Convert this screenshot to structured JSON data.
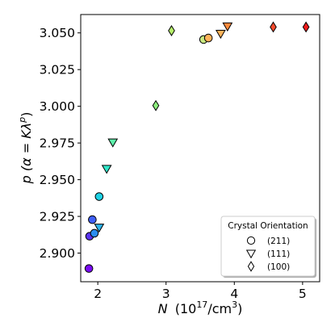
{
  "chart_data": {
    "type": "scatter",
    "xlabel_main": "N",
    "xlabel_unit": "(10",
    "xlabel_exp": "17",
    "xlabel_unit2": "/cm",
    "xlabel_exp2": "3",
    "xlabel_close": ")",
    "ylabel": "p (α = Kλ",
    "ylabel_exp": "p",
    "ylabel_close": ")",
    "xlim": [
      1.75,
      5.25
    ],
    "ylim": [
      2.8805,
      3.0625
    ],
    "xticks": [
      2,
      3,
      4,
      5
    ],
    "yticks": [
      2.9,
      2.925,
      2.95,
      2.975,
      3.0,
      3.025,
      3.05
    ],
    "ytick_labels": [
      "2.900",
      "2.925",
      "2.950",
      "2.975",
      "3.000",
      "3.025",
      "3.050"
    ],
    "xtick_labels": [
      "2",
      "3",
      "4",
      "5"
    ],
    "legend": {
      "title": "Crystal Orientation",
      "location": "lower-right",
      "entries": [
        {
          "marker": "circle",
          "label": "(211)"
        },
        {
          "marker": "triangle-down",
          "label": "(111)"
        },
        {
          "marker": "diamond",
          "label": "(100)"
        }
      ]
    },
    "points": [
      {
        "x": 1.87,
        "y": 2.8895,
        "marker": "circle",
        "color": "#7a0bf5"
      },
      {
        "x": 1.88,
        "y": 2.9115,
        "marker": "circle",
        "color": "#5a34f0"
      },
      {
        "x": 1.92,
        "y": 2.9228,
        "marker": "circle",
        "color": "#3f5ff6"
      },
      {
        "x": 1.95,
        "y": 2.9135,
        "marker": "circle",
        "color": "#2b8df0"
      },
      {
        "x": 2.02,
        "y": 2.9385,
        "marker": "circle",
        "color": "#1ed2e5"
      },
      {
        "x": 3.55,
        "y": 3.0455,
        "marker": "circle",
        "color": "#c9e77f"
      },
      {
        "x": 3.62,
        "y": 3.0465,
        "marker": "circle",
        "color": "#ffb25a"
      },
      {
        "x": 2.02,
        "y": 2.9175,
        "marker": "triangle-down",
        "color": "#2cb3ea"
      },
      {
        "x": 2.13,
        "y": 2.9575,
        "marker": "triangle-down",
        "color": "#30e6c9"
      },
      {
        "x": 2.22,
        "y": 2.9755,
        "marker": "triangle-down",
        "color": "#5ef0ab"
      },
      {
        "x": 3.8,
        "y": 3.0495,
        "marker": "triangle-down",
        "color": "#ffb35a"
      },
      {
        "x": 3.9,
        "y": 3.0545,
        "marker": "triangle-down",
        "color": "#ff8a3c"
      },
      {
        "x": 2.85,
        "y": 3.0005,
        "marker": "diamond",
        "color": "#8cee7d"
      },
      {
        "x": 3.08,
        "y": 3.0515,
        "marker": "diamond",
        "color": "#b6f06a"
      },
      {
        "x": 4.57,
        "y": 3.054,
        "marker": "diamond",
        "color": "#f44a2c"
      },
      {
        "x": 5.05,
        "y": 3.054,
        "marker": "diamond",
        "color": "#ee1a1a"
      }
    ]
  }
}
